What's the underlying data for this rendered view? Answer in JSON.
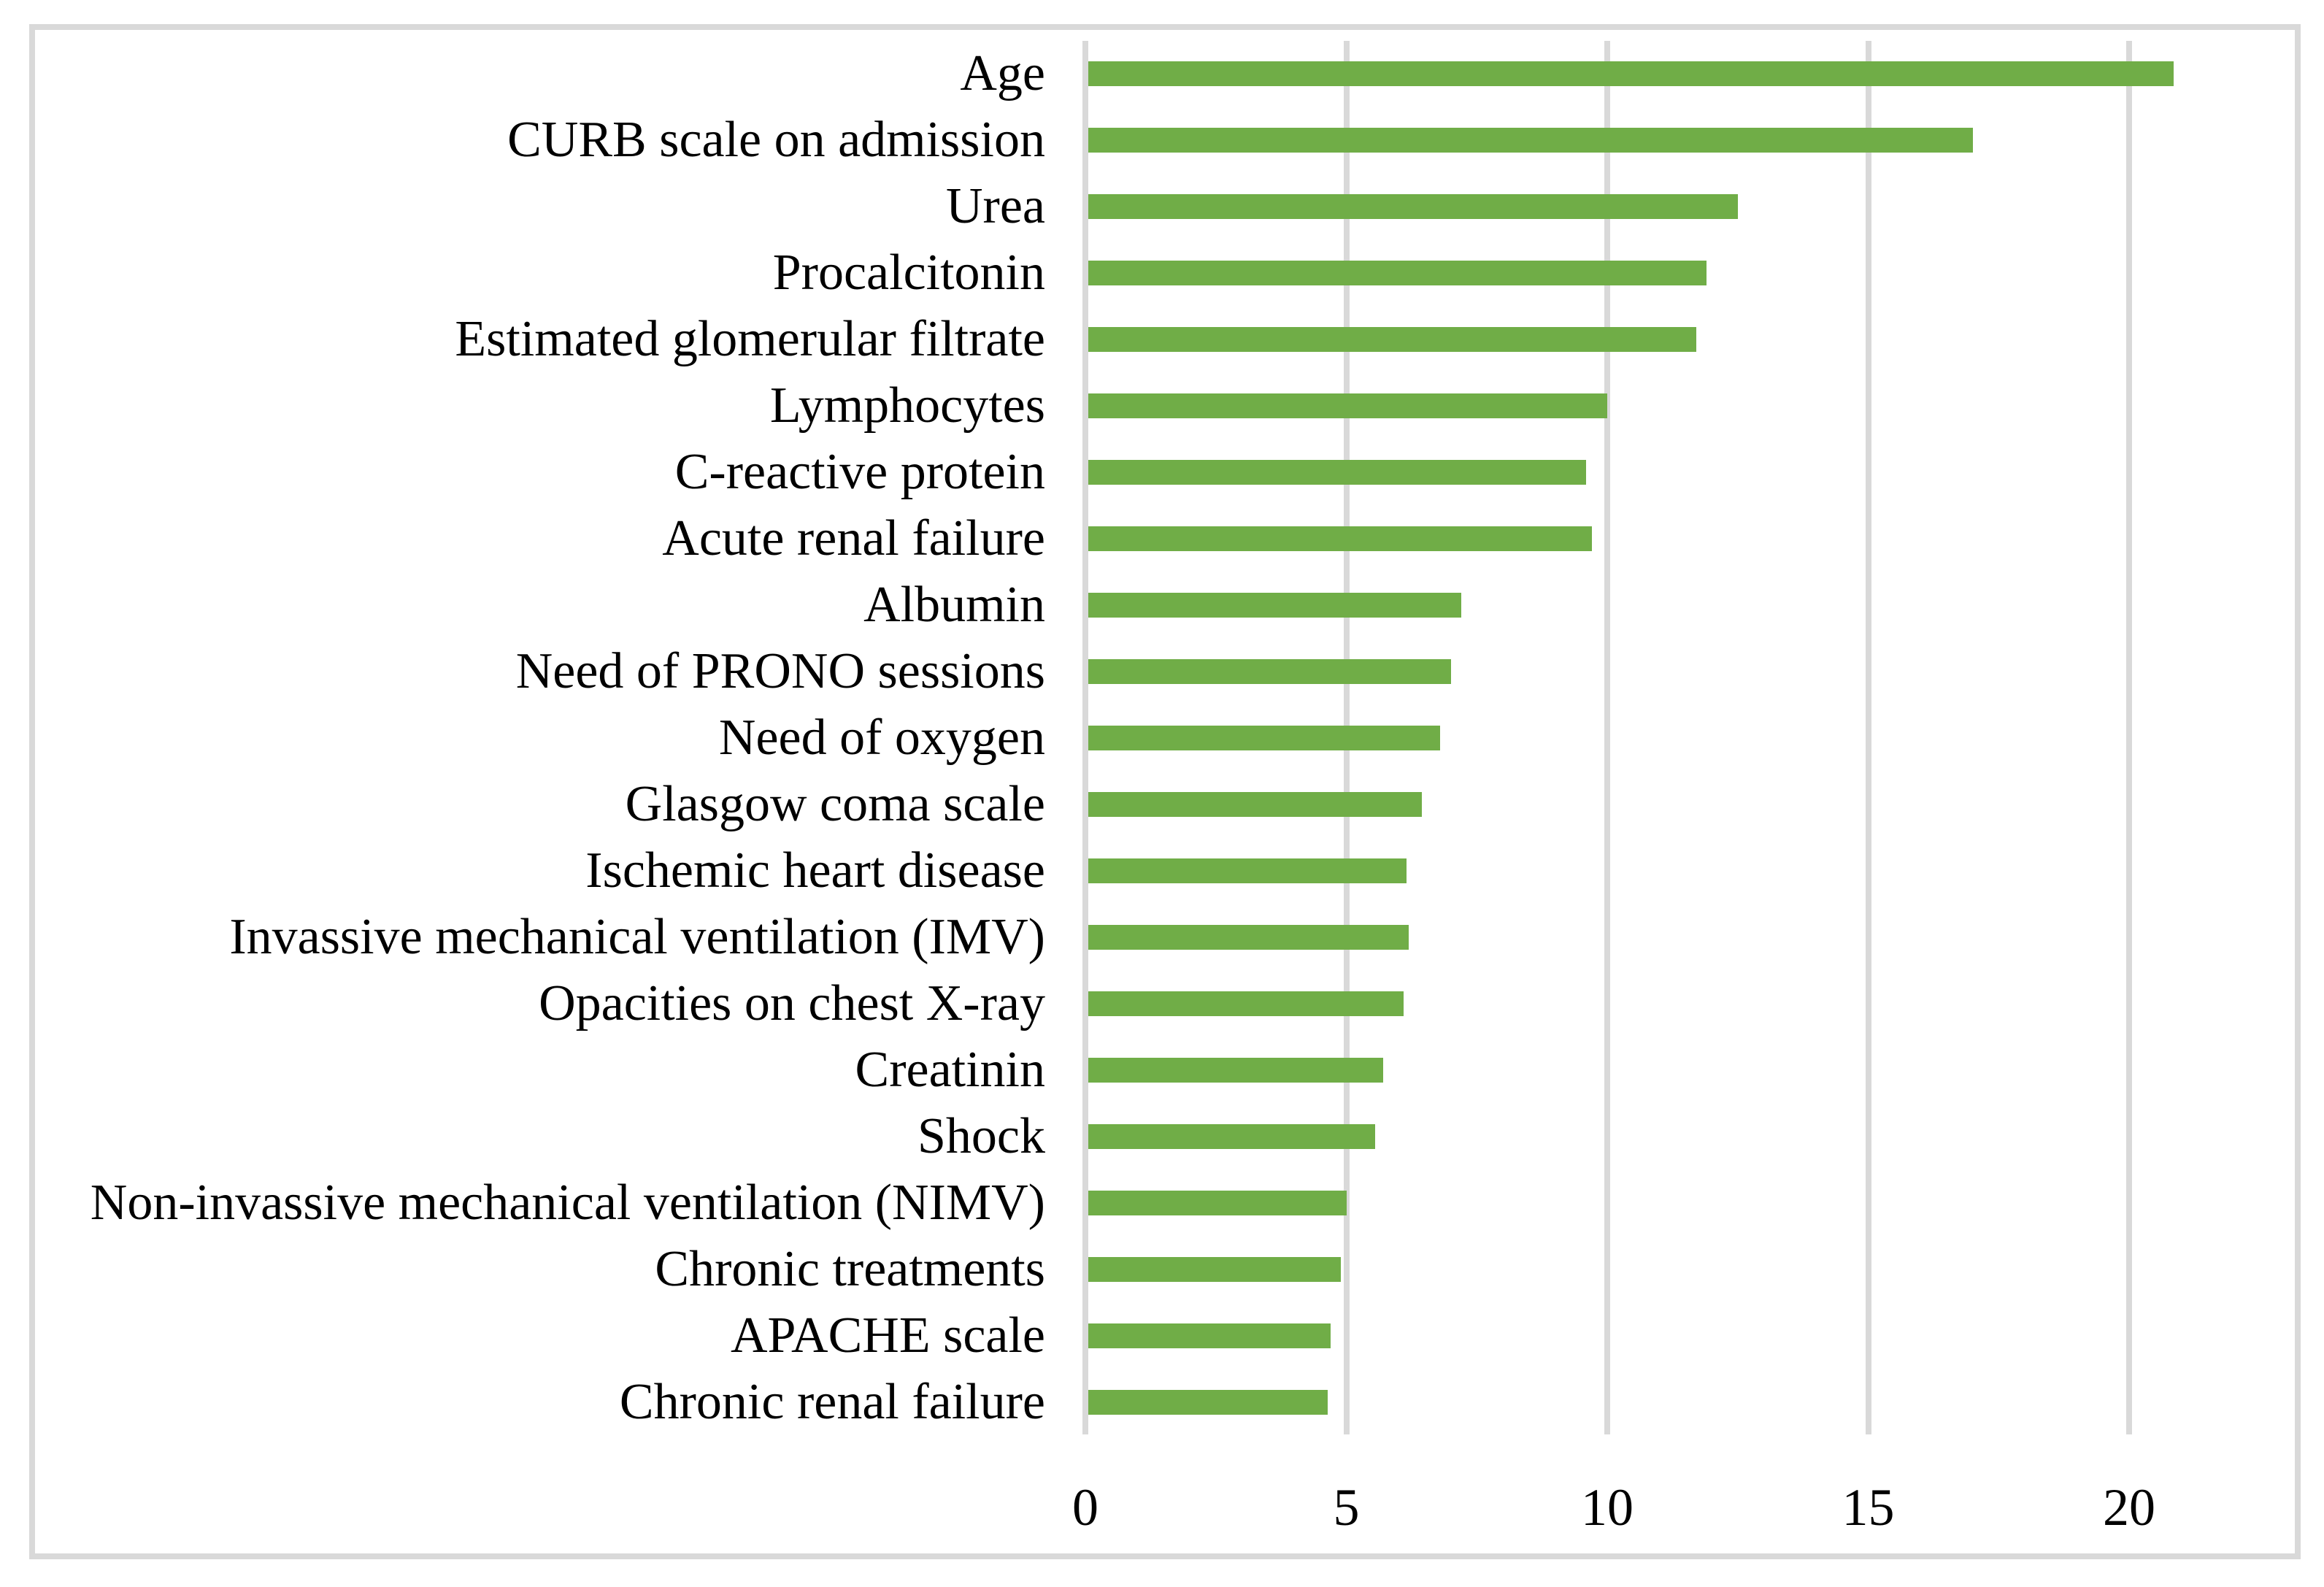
{
  "chart_data": {
    "type": "bar",
    "orientation": "horizontal",
    "title": "",
    "xlabel": "",
    "ylabel": "",
    "categories": [
      "Age",
      "CURB scale on admission",
      "Urea",
      "Procalcitonin",
      "Estimated glomerular filtrate",
      "Lymphocytes",
      "C-reactive protein",
      "Acute renal failure",
      "Albumin",
      "Need of PRONO sessions",
      "Need of oxygen",
      "Glasgow coma scale",
      "Ischemic heart disease",
      "Invassive mechanical ventilation (IMV)",
      "Opacities on chest X-ray",
      "Creatinin",
      "Shock",
      "Non-invassive mechanical ventilation (NIMV)",
      "Chronic treatments",
      "APACHE scale",
      "Chronic renal failure"
    ],
    "values": [
      20.85,
      17.0,
      12.5,
      11.9,
      11.7,
      10.0,
      9.6,
      9.7,
      7.2,
      7.0,
      6.8,
      6.45,
      6.15,
      6.2,
      6.1,
      5.7,
      5.55,
      5.0,
      4.9,
      4.7,
      4.65
    ],
    "x_ticks": [
      0,
      5,
      10,
      15,
      20
    ],
    "xlim": [
      0,
      22.8
    ],
    "grid": "vertical-gridlines-at-ticks",
    "legend_position": "none",
    "colors": {
      "bar_fill": "#70AD47",
      "gridline": "#D9D9D9",
      "axis_line": "#D9D9D9",
      "figure_border": "#D9D9D9",
      "text": "#000000",
      "background": "#ffffff"
    }
  }
}
